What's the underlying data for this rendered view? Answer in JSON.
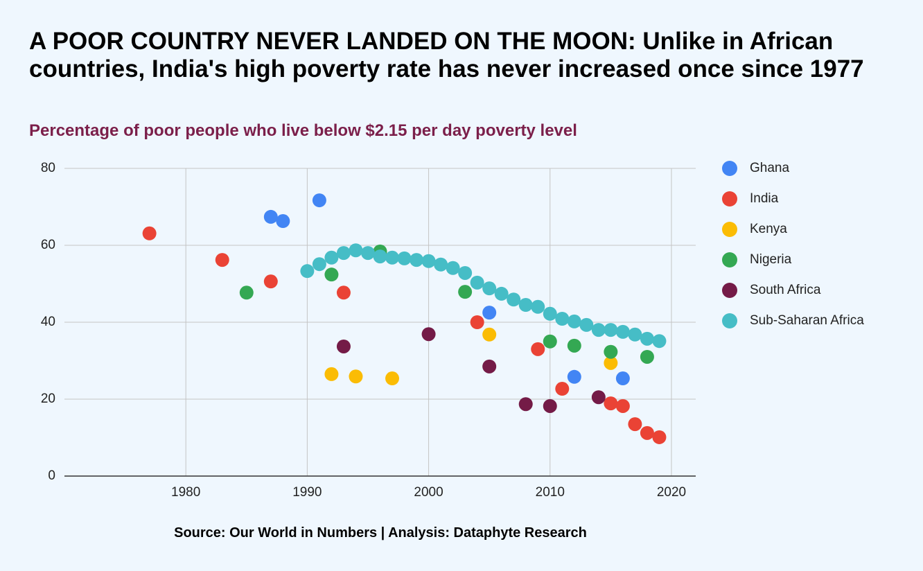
{
  "chart_data": {
    "type": "scatter",
    "title": "A POOR COUNTRY NEVER LANDED ON THE MOON: Unlike in African countries, India's high poverty rate has never increased once since 1977",
    "subtitle": "Percentage of poor people who live below $2.15 per day poverty level",
    "source": "Source: Our World in Numbers | Analysis: Dataphyte Research",
    "xlim": [
      1970,
      2022
    ],
    "xticks": [
      1980,
      1990,
      2000,
      2010,
      2020
    ],
    "ylim": [
      0,
      80
    ],
    "yticks": [
      0,
      20,
      40,
      60,
      80
    ],
    "grid": true,
    "legend": "right",
    "series": [
      {
        "name": "Ghana",
        "color": "#4285f4",
        "x": [
          1987,
          1988,
          1991,
          2005,
          2012,
          2016
        ],
        "values": [
          67.4,
          66.3,
          71.7,
          42.5,
          25.8,
          25.4
        ]
      },
      {
        "name": "India",
        "color": "#ea4335",
        "x": [
          1977,
          1983,
          1987,
          1993,
          2004,
          2009,
          2011,
          2015,
          2016,
          2017,
          2018,
          2019
        ],
        "values": [
          63.1,
          56.2,
          50.6,
          47.7,
          40.0,
          33.0,
          22.7,
          18.9,
          18.2,
          13.5,
          11.2,
          10.1
        ]
      },
      {
        "name": "Kenya",
        "color": "#fbbc04",
        "x": [
          1992,
          1994,
          1997,
          2005,
          2015
        ],
        "values": [
          26.5,
          25.9,
          25.4,
          36.8,
          29.4
        ]
      },
      {
        "name": "Nigeria",
        "color": "#34a853",
        "x": [
          1985,
          1992,
          1996,
          2003,
          2010,
          2012,
          2015,
          2018
        ],
        "values": [
          47.7,
          52.4,
          58.4,
          47.9,
          35.0,
          33.9,
          32.3,
          31.0
        ]
      },
      {
        "name": "South Africa",
        "color": "#741b47",
        "x": [
          1993,
          2000,
          2005,
          2008,
          2010,
          2014
        ],
        "values": [
          33.7,
          36.9,
          28.5,
          18.7,
          18.2,
          20.5
        ]
      },
      {
        "name": "Sub-Saharan Africa",
        "color": "#46bdc6",
        "x": [
          1990,
          1991,
          1992,
          1993,
          1994,
          1995,
          1996,
          1997,
          1998,
          1999,
          2000,
          2001,
          2002,
          2003,
          2004,
          2005,
          2006,
          2007,
          2008,
          2009,
          2010,
          2011,
          2012,
          2013,
          2014,
          2015,
          2016,
          2017,
          2018,
          2019
        ],
        "values": [
          53.3,
          55.1,
          56.8,
          58.0,
          58.7,
          58.0,
          57.1,
          56.8,
          56.6,
          56.2,
          55.9,
          55.0,
          54.1,
          52.8,
          50.3,
          48.8,
          47.4,
          45.9,
          44.5,
          44.0,
          42.2,
          40.9,
          40.2,
          39.3,
          38.0,
          38.0,
          37.5,
          36.8,
          35.7,
          35.1
        ]
      }
    ]
  }
}
